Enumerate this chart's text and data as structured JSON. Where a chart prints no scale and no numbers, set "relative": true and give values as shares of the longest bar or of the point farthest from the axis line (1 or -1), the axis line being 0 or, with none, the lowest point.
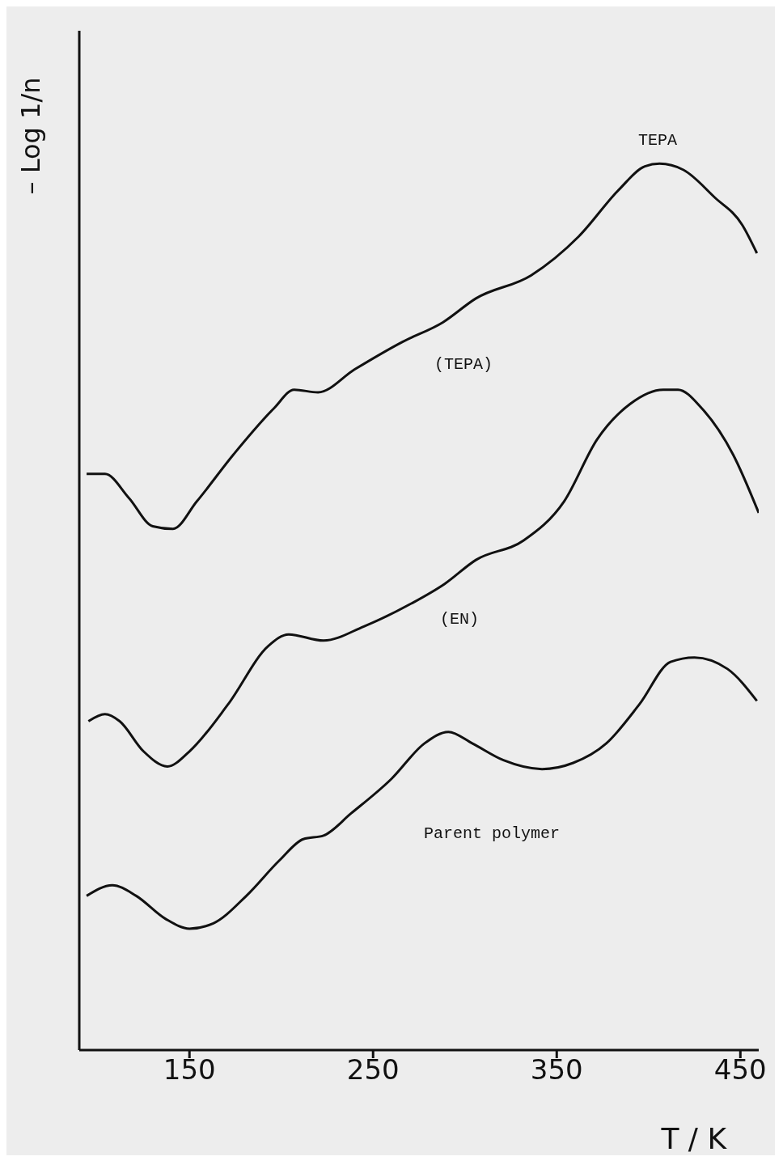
{
  "chart_data": {
    "type": "line",
    "relative": true,
    "xlabel": "T / K",
    "ylabel": "– Log 1/n",
    "xlim": [
      90,
      460
    ],
    "xticks": [
      150,
      250,
      350,
      450
    ],
    "grid": false,
    "legend": false,
    "marker": "none",
    "line_style": "solid",
    "series": [
      {
        "color": "#111111",
        "x": [
          94,
          104,
          117,
          130,
          141,
          154,
          174,
          196,
          207,
          220,
          240,
          266,
          288,
          306,
          336,
          362,
          384,
          398,
          406,
          419,
          436,
          451,
          459
        ],
        "values": [
          0.65,
          0.65,
          0.623,
          0.591,
          0.588,
          0.619,
          0.672,
          0.724,
          0.745,
          0.742,
          0.768,
          0.799,
          0.821,
          0.848,
          0.874,
          0.918,
          0.971,
          0.997,
          1.0,
          0.993,
          0.962,
          0.931,
          0.899
        ]
      },
      {
        "color": "#111111",
        "x": [
          95,
          104,
          112,
          125,
          138,
          150,
          171,
          193,
          204,
          223,
          245,
          271,
          289,
          306,
          332,
          354,
          372,
          390,
          408,
          416,
          429,
          446,
          460
        ],
        "values": [
          0.371,
          0.379,
          0.371,
          0.337,
          0.32,
          0.337,
          0.39,
          0.456,
          0.469,
          0.462,
          0.478,
          0.504,
          0.526,
          0.553,
          0.575,
          0.619,
          0.689,
          0.729,
          0.745,
          0.745,
          0.724,
          0.672,
          0.606
        ]
      },
      {
        "color": "#111111",
        "x": [
          94,
          108,
          121,
          137,
          150,
          163,
          181,
          199,
          212,
          223,
          238,
          260,
          278,
          291,
          304,
          321,
          342,
          359,
          377,
          395,
          412,
          425,
          443,
          459
        ],
        "values": [
          0.174,
          0.186,
          0.174,
          0.148,
          0.137,
          0.143,
          0.174,
          0.214,
          0.238,
          0.242,
          0.267,
          0.306,
          0.346,
          0.359,
          0.346,
          0.327,
          0.317,
          0.324,
          0.346,
          0.39,
          0.438,
          0.443,
          0.43,
          0.394
        ]
      }
    ],
    "annotations": [
      "TEPA",
      "(TEPA)",
      "(EN)",
      "Parent polymer"
    ]
  }
}
